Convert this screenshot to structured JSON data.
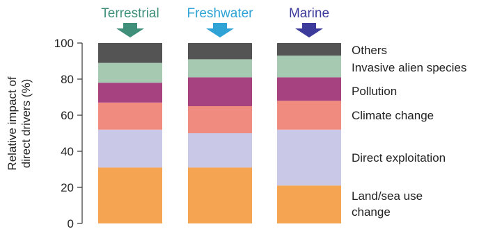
{
  "chart_data": {
    "type": "bar",
    "stacked": true,
    "categories": [
      "Terrestrial",
      "Freshwater",
      "Marine"
    ],
    "category_colors": [
      "#3f8f7a",
      "#2fa2d6",
      "#3c3a9a"
    ],
    "ylabel_lines": [
      "Relative impact of",
      "direct drivers (%)"
    ],
    "ylim": [
      0,
      100
    ],
    "yticks": [
      "0",
      "20",
      "40",
      "60",
      "80",
      "100"
    ],
    "series": [
      {
        "name": "Land/sea use change",
        "name_lines": [
          "Land/sea use",
          "change"
        ],
        "color": "#f5a552",
        "values": [
          31,
          31,
          21
        ]
      },
      {
        "name": "Direct exploitation",
        "name_lines": [
          "Direct exploitation"
        ],
        "color": "#c9c8e6",
        "values": [
          21,
          19,
          31
        ]
      },
      {
        "name": "Climate change",
        "name_lines": [
          "Climate change"
        ],
        "color": "#f08b80",
        "values": [
          15,
          15,
          16
        ]
      },
      {
        "name": "Pollution",
        "name_lines": [
          "Pollution"
        ],
        "color": "#a5427f",
        "values": [
          11,
          16,
          13
        ]
      },
      {
        "name": "Invasive alien species",
        "name_lines": [
          "Invasive alien species"
        ],
        "color": "#a6c9b2",
        "values": [
          11,
          10,
          12
        ]
      },
      {
        "name": "Others",
        "name_lines": [
          "Others"
        ],
        "color": "#545454",
        "values": [
          11,
          9,
          7
        ]
      }
    ],
    "legend_placement": "right",
    "grid": false
  }
}
